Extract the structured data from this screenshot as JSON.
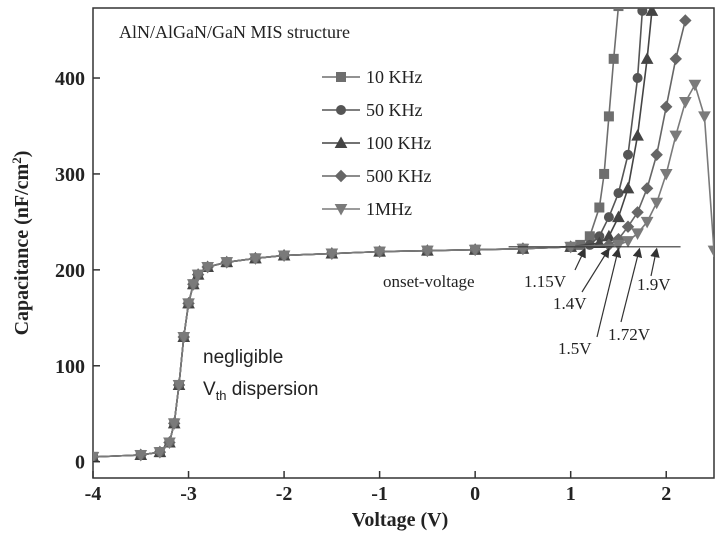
{
  "chart_data": {
    "type": "line",
    "title": "AlN/AlGaN/GaN MIS structure",
    "xlabel": "Voltage (V)",
    "ylabel": {
      "main": "Capacitance (nF/cm",
      "sup": "2",
      "end": ")"
    },
    "xlim": [
      -4,
      2.5
    ],
    "xticks": [
      -4,
      -3,
      -2,
      -1,
      0,
      1,
      2
    ],
    "ylim": [
      -17,
      473
    ],
    "yticks": [
      0,
      100,
      200,
      300,
      400
    ],
    "series": [
      {
        "name": "10 KHz",
        "color": "#6e6e6e",
        "marker": "square",
        "x": [
          -4,
          -3.5,
          -3.3,
          -3.2,
          -3.15,
          -3.1,
          -3.05,
          -3,
          -2.95,
          -2.9,
          -2.8,
          -2.6,
          -2.3,
          -2,
          -1.5,
          -1,
          -0.5,
          0,
          0.5,
          1,
          1.1,
          1.2,
          1.3,
          1.35,
          1.4,
          1.45,
          1.5
        ],
        "values": [
          5,
          7,
          10,
          20,
          40,
          80,
          130,
          165,
          185,
          195,
          203,
          208,
          212,
          215,
          217,
          219,
          220,
          221,
          222,
          224,
          226,
          235,
          265,
          300,
          360,
          420,
          475
        ]
      },
      {
        "name": "50 KHz",
        "color": "#555555",
        "marker": "circle",
        "x": [
          -4,
          -3.5,
          -3.3,
          -3.2,
          -3.15,
          -3.1,
          -3.05,
          -3,
          -2.95,
          -2.9,
          -2.8,
          -2.6,
          -2.3,
          -2,
          -1.5,
          -1,
          -0.5,
          0,
          0.5,
          1,
          1.2,
          1.3,
          1.4,
          1.5,
          1.6,
          1.7,
          1.75
        ],
        "values": [
          5,
          7,
          10,
          20,
          40,
          80,
          130,
          165,
          185,
          195,
          203,
          208,
          212,
          215,
          217,
          219,
          220,
          221,
          222,
          224,
          226,
          235,
          255,
          280,
          320,
          400,
          470
        ]
      },
      {
        "name": "100 KHz",
        "color": "#444444",
        "marker": "triangle-up",
        "x": [
          -4,
          -3.5,
          -3.3,
          -3.2,
          -3.15,
          -3.1,
          -3.05,
          -3,
          -2.95,
          -2.9,
          -2.8,
          -2.6,
          -2.3,
          -2,
          -1.5,
          -1,
          -0.5,
          0,
          0.5,
          1,
          1.3,
          1.4,
          1.5,
          1.6,
          1.7,
          1.8,
          1.85
        ],
        "values": [
          5,
          7,
          10,
          20,
          40,
          80,
          130,
          165,
          185,
          195,
          203,
          208,
          212,
          215,
          217,
          219,
          220,
          221,
          222,
          224,
          228,
          235,
          255,
          285,
          340,
          420,
          470
        ]
      },
      {
        "name": "500 KHz",
        "color": "#666666",
        "marker": "diamond",
        "x": [
          -4,
          -3.5,
          -3.3,
          -3.2,
          -3.15,
          -3.1,
          -3.05,
          -3,
          -2.95,
          -2.9,
          -2.8,
          -2.6,
          -2.3,
          -2,
          -1.5,
          -1,
          -0.5,
          0,
          0.5,
          1,
          1.4,
          1.5,
          1.6,
          1.7,
          1.8,
          1.9,
          2,
          2.1,
          2.2
        ],
        "values": [
          5,
          7,
          10,
          20,
          40,
          80,
          130,
          165,
          185,
          195,
          203,
          208,
          212,
          215,
          217,
          219,
          220,
          221,
          222,
          224,
          226,
          232,
          245,
          260,
          285,
          320,
          370,
          420,
          460
        ]
      },
      {
        "name": "1MHz",
        "color": "#7a7a7a",
        "marker": "triangle-down",
        "x": [
          -4,
          -3.5,
          -3.3,
          -3.2,
          -3.15,
          -3.1,
          -3.05,
          -3,
          -2.95,
          -2.9,
          -2.8,
          -2.6,
          -2.3,
          -2,
          -1.5,
          -1,
          -0.5,
          0,
          0.5,
          1,
          1.5,
          1.6,
          1.7,
          1.8,
          1.9,
          2,
          2.1,
          2.2,
          2.3,
          2.4,
          2.5
        ],
        "values": [
          5,
          7,
          10,
          20,
          40,
          80,
          130,
          165,
          185,
          195,
          203,
          208,
          212,
          215,
          217,
          219,
          220,
          221,
          222,
          224,
          226,
          230,
          238,
          250,
          270,
          300,
          340,
          375,
          393,
          360,
          220
        ]
      }
    ],
    "reference_line": {
      "y": 224,
      "x": [
        0.35,
        2.15
      ]
    },
    "onset_label": "onset-voltage",
    "onsets": [
      {
        "label": "1.15V",
        "value": 1.15
      },
      {
        "label": "1.4V",
        "value": 1.4
      },
      {
        "label": "1.5V",
        "value": 1.5
      },
      {
        "label": "1.72V",
        "value": 1.72
      },
      {
        "label": "1.9V",
        "value": 1.9
      }
    ],
    "note": {
      "line1": "negligible",
      "main": "V",
      "sub": "th",
      "rest": " dispersion"
    }
  }
}
